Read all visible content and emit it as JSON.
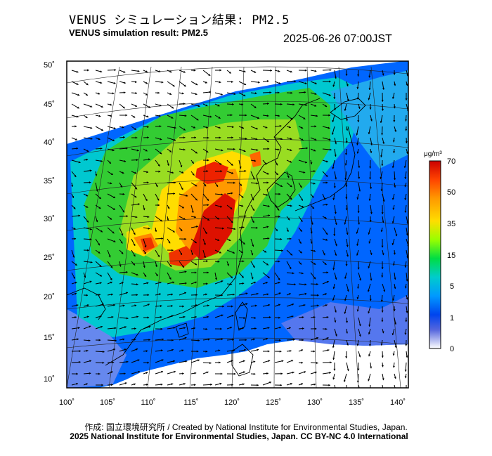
{
  "header": {
    "title_jp": "VENUS シミュレーション結果: PM2.5",
    "title_en": "VENUS simulation result: PM2.5",
    "timestamp": "2025-06-26 07:00JST"
  },
  "map": {
    "lat_ticks": [
      "50˚",
      "45˚",
      "40˚",
      "35˚",
      "30˚",
      "25˚",
      "20˚",
      "15˚",
      "10˚"
    ],
    "lon_ticks": [
      "100˚",
      "105˚",
      "110˚",
      "115˚",
      "120˚",
      "125˚",
      "130˚",
      "135˚",
      "140˚"
    ]
  },
  "colorbar": {
    "unit": "μg/m³",
    "labels": [
      "70",
      "50",
      "35",
      "15",
      "5",
      "1",
      "0"
    ],
    "colors": [
      "#cc0000",
      "#ff5a00",
      "#ffa500",
      "#ffff00",
      "#7fff00",
      "#00cc33",
      "#00cccc",
      "#0099ff",
      "#0044ee",
      "#3366cc",
      "#8888dd",
      "#ffffff"
    ]
  },
  "footer": {
    "credit": "作成: 国立環境研究所 / Created by National Institute for Environmental Studies, Japan.",
    "license": "2025 National Institute for Environmental Studies, Japan. CC BY-NC 4.0 International"
  }
}
